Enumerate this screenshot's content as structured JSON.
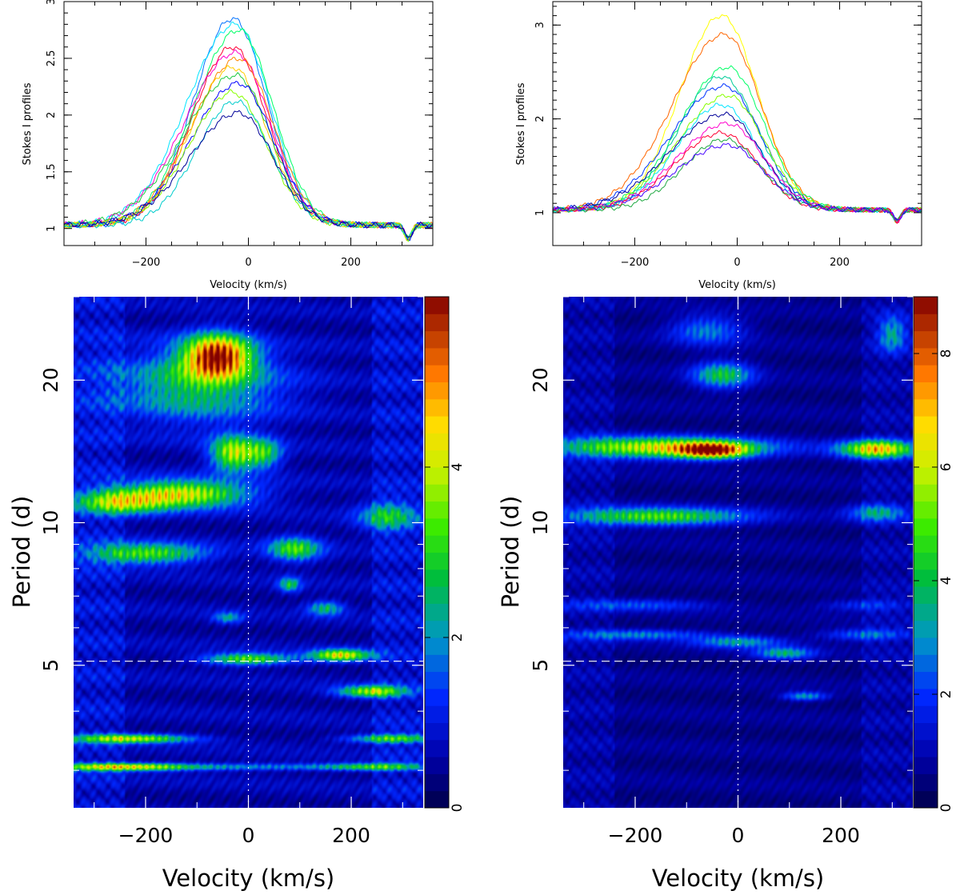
{
  "chart_data": [
    {
      "type": "line",
      "panel": "top-left",
      "title": "",
      "xlabel": "Velocity (km/s)",
      "ylabel": "Stokes I profiles",
      "xlim": [
        -360,
        360
      ],
      "ylim": [
        0.85,
        3.0
      ],
      "xticks": [
        -200,
        0,
        200
      ],
      "xtick_labels": [
        "−200",
        "0",
        "200"
      ],
      "yticks": [
        1,
        1.5,
        2,
        2.5,
        3
      ],
      "ytick_labels": [
        "1",
        "1.5",
        "2",
        "2.5",
        "3"
      ],
      "profile_model": {
        "base": 1.03,
        "peak_velocity": -25,
        "width_kms": 90,
        "absorption_velocity": 312,
        "absorption_depth": 0.12
      },
      "series": [
        {
          "name": "profile-1",
          "color": "#0072ff",
          "peak": 2.85
        },
        {
          "name": "profile-2",
          "color": "#00e5ff",
          "peak": 2.8
        },
        {
          "name": "profile-3",
          "color": "#00ff66",
          "peak": 2.75
        },
        {
          "name": "profile-4",
          "color": "#ff0033",
          "peak": 2.6
        },
        {
          "name": "profile-5",
          "color": "#ff00cc",
          "peak": 2.55
        },
        {
          "name": "profile-6",
          "color": "#ff8800",
          "peak": 2.5
        },
        {
          "name": "profile-7",
          "color": "#ffcc00",
          "peak": 2.42
        },
        {
          "name": "profile-8",
          "color": "#22cc44",
          "peak": 2.35
        },
        {
          "name": "profile-9",
          "color": "#0000ff",
          "peak": 2.28
        },
        {
          "name": "profile-10",
          "color": "#88ff00",
          "peak": 2.2
        },
        {
          "name": "profile-11",
          "color": "#00cccc",
          "peak": 2.12
        },
        {
          "name": "profile-12",
          "color": "#000099",
          "peak": 2.02
        }
      ]
    },
    {
      "type": "line",
      "panel": "top-right",
      "title": "",
      "xlabel": "Velocity (km/s)",
      "ylabel": "Stokes I profiles",
      "xlim": [
        -360,
        360
      ],
      "ylim": [
        0.65,
        3.25
      ],
      "xticks": [
        -200,
        0,
        200
      ],
      "xtick_labels": [
        "−200",
        "0",
        "200"
      ],
      "yticks": [
        1,
        2,
        3
      ],
      "ytick_labels": [
        "1",
        "2",
        "3"
      ],
      "profile_model": {
        "base": 1.03,
        "peak_velocity": -25,
        "width_kms": 95,
        "absorption_velocity": 312,
        "absorption_depth": 0.12
      },
      "series": [
        {
          "name": "profile-1",
          "color": "#ffff00",
          "peak": 3.1
        },
        {
          "name": "profile-2",
          "color": "#ff6600",
          "peak": 2.9
        },
        {
          "name": "profile-3",
          "color": "#00ff66",
          "peak": 2.55
        },
        {
          "name": "profile-4",
          "color": "#00cc99",
          "peak": 2.45
        },
        {
          "name": "profile-5",
          "color": "#0033ff",
          "peak": 2.35
        },
        {
          "name": "profile-6",
          "color": "#88ff00",
          "peak": 2.25
        },
        {
          "name": "profile-7",
          "color": "#00e5ff",
          "peak": 2.15
        },
        {
          "name": "profile-8",
          "color": "#000099",
          "peak": 2.05
        },
        {
          "name": "profile-9",
          "color": "#ff00cc",
          "peak": 1.95
        },
        {
          "name": "profile-10",
          "color": "#ff0033",
          "peak": 1.85
        },
        {
          "name": "profile-11",
          "color": "#22aa44",
          "peak": 1.78
        },
        {
          "name": "profile-12",
          "color": "#4400ff",
          "peak": 1.72
        }
      ]
    },
    {
      "type": "heatmap",
      "panel": "bottom-left",
      "title": "",
      "xlabel": "Velocity (km/s)",
      "ylabel": "Period (d)",
      "xlim": [
        -340,
        340
      ],
      "ylim": [
        2.5,
        30
      ],
      "y_scale": "log",
      "xticks": [
        -200,
        0,
        200
      ],
      "xtick_labels": [
        "−200",
        "0",
        "200"
      ],
      "yticks": [
        5,
        10,
        20
      ],
      "ytick_labels": [
        "5",
        "10",
        "20"
      ],
      "y_minor_ticks": [
        3,
        4,
        6,
        7,
        8,
        9,
        30
      ],
      "reference_period": 5.1,
      "colorbar": {
        "min": 0,
        "max": 6,
        "ticks": [
          0,
          2,
          4
        ],
        "tick_labels": [
          "0",
          "2",
          "4"
        ]
      },
      "peaks": [
        {
          "v": -60,
          "p": 22.5,
          "sv": 45,
          "sp": 0.07,
          "a": 6.0
        },
        {
          "v": -100,
          "p": 19.5,
          "sv": 110,
          "sp": 0.12,
          "a": 2.5
        },
        {
          "v": -30,
          "p": 14.0,
          "sv": 30,
          "sp": 0.06,
          "a": 3.8
        },
        {
          "v": 30,
          "p": 14.0,
          "sv": 25,
          "sp": 0.05,
          "a": 2.6
        },
        {
          "v": -130,
          "p": 11.5,
          "sv": 90,
          "sp": 0.045,
          "a": 4.2
        },
        {
          "v": -250,
          "p": 11.0,
          "sv": 60,
          "sp": 0.04,
          "a": 3.0
        },
        {
          "v": -200,
          "p": 8.6,
          "sv": 80,
          "sp": 0.035,
          "a": 3.2
        },
        {
          "v": 90,
          "p": 8.8,
          "sv": 35,
          "sp": 0.04,
          "a": 3.0
        },
        {
          "v": 270,
          "p": 10.3,
          "sv": 40,
          "sp": 0.05,
          "a": 2.2
        },
        {
          "v": 80,
          "p": 7.4,
          "sv": 15,
          "sp": 0.025,
          "a": 2.4
        },
        {
          "v": -40,
          "p": 6.3,
          "sv": 20,
          "sp": 0.02,
          "a": 1.8
        },
        {
          "v": 150,
          "p": 6.6,
          "sv": 25,
          "sp": 0.025,
          "a": 2.2
        },
        {
          "v": 0,
          "p": 5.15,
          "sv": 60,
          "sp": 0.02,
          "a": 3.2
        },
        {
          "v": 180,
          "p": 5.25,
          "sv": 40,
          "sp": 0.02,
          "a": 4.2
        },
        {
          "v": 240,
          "p": 4.4,
          "sv": 45,
          "sp": 0.02,
          "a": 3.6
        },
        {
          "v": -230,
          "p": 3.5,
          "sv": 80,
          "sp": 0.015,
          "a": 3.8
        },
        {
          "v": -250,
          "p": 3.05,
          "sv": 90,
          "sp": 0.013,
          "a": 4.0
        },
        {
          "v": 280,
          "p": 3.5,
          "sv": 60,
          "sp": 0.015,
          "a": 3.0
        },
        {
          "v": 250,
          "p": 3.05,
          "sv": 70,
          "sp": 0.013,
          "a": 2.4
        },
        {
          "v": 0,
          "p": 3.05,
          "sv": 180,
          "sp": 0.012,
          "a": 1.6
        }
      ]
    },
    {
      "type": "heatmap",
      "panel": "bottom-right",
      "title": "",
      "xlabel": "Velocity (km/s)",
      "ylabel": "Period (d)",
      "xlim": [
        -340,
        340
      ],
      "ylim": [
        2.5,
        30
      ],
      "y_scale": "log",
      "xticks": [
        -200,
        0,
        200
      ],
      "xtick_labels": [
        "−200",
        "0",
        "200"
      ],
      "yticks": [
        5,
        10,
        20
      ],
      "ytick_labels": [
        "5",
        "10",
        "20"
      ],
      "y_minor_ticks": [
        3,
        4,
        6,
        7,
        8,
        9,
        30
      ],
      "reference_period": 5.1,
      "colorbar": {
        "min": 0,
        "max": 9,
        "ticks": [
          0,
          2,
          4,
          6,
          8
        ],
        "tick_labels": [
          "0",
          "2",
          "4",
          "6",
          "8"
        ]
      },
      "peaks": [
        {
          "v": -150,
          "p": 14.4,
          "sv": 140,
          "sp": 0.035,
          "a": 6.5
        },
        {
          "v": -50,
          "p": 14.2,
          "sv": 45,
          "sp": 0.025,
          "a": 7.5
        },
        {
          "v": 270,
          "p": 14.3,
          "sv": 50,
          "sp": 0.03,
          "a": 7.0
        },
        {
          "v": -160,
          "p": 10.3,
          "sv": 120,
          "sp": 0.03,
          "a": 5.0
        },
        {
          "v": 270,
          "p": 10.5,
          "sv": 40,
          "sp": 0.03,
          "a": 3.0
        },
        {
          "v": -30,
          "p": 20.5,
          "sv": 40,
          "sp": 0.045,
          "a": 4.0
        },
        {
          "v": -60,
          "p": 25.5,
          "sv": 50,
          "sp": 0.05,
          "a": 2.5
        },
        {
          "v": 300,
          "p": 25.0,
          "sv": 20,
          "sp": 0.06,
          "a": 3.0
        },
        {
          "v": 0,
          "p": 5.6,
          "sv": 60,
          "sp": 0.02,
          "a": 3.0
        },
        {
          "v": 90,
          "p": 5.3,
          "sv": 40,
          "sp": 0.02,
          "a": 3.4
        },
        {
          "v": -200,
          "p": 5.8,
          "sv": 100,
          "sp": 0.018,
          "a": 2.6
        },
        {
          "v": 130,
          "p": 4.3,
          "sv": 30,
          "sp": 0.015,
          "a": 3.0
        },
        {
          "v": 250,
          "p": 5.8,
          "sv": 60,
          "sp": 0.02,
          "a": 2.4
        },
        {
          "v": 250,
          "p": 6.7,
          "sv": 60,
          "sp": 0.02,
          "a": 1.6
        },
        {
          "v": -200,
          "p": 6.7,
          "sv": 100,
          "sp": 0.02,
          "a": 1.8
        }
      ]
    }
  ]
}
